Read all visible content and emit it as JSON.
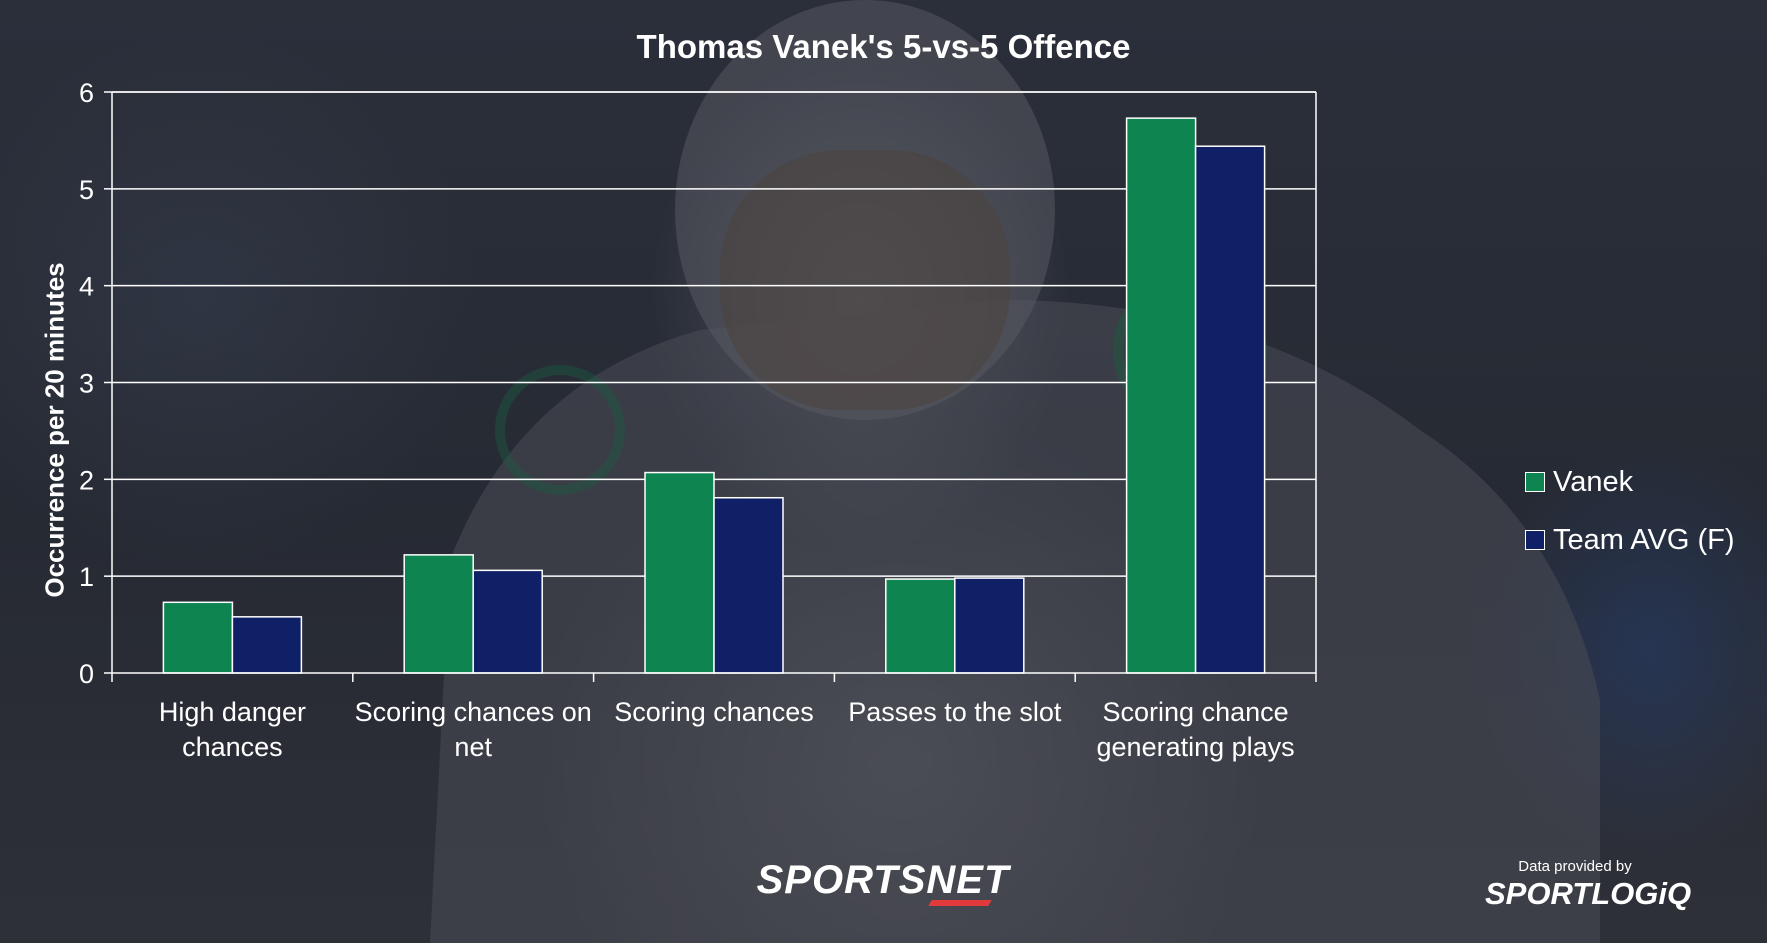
{
  "branding": {
    "broadcaster": "SPORTSNET",
    "source_caption": "Data provided by",
    "source": "SPORTLOGiQ"
  },
  "colors": {
    "vanek": "#0e8451",
    "team": "#102066",
    "grid": "#ffffff",
    "text": "#ffffff"
  },
  "chart_data": {
    "type": "bar",
    "title": "Thomas Vanek's 5-vs-5 Offence",
    "ylabel": "Occurrence per 20 minutes",
    "xlabel": "",
    "ylim": [
      0,
      6
    ],
    "yticks": [
      0,
      1,
      2,
      3,
      4,
      5,
      6
    ],
    "grid": true,
    "legend_position": "right",
    "categories": [
      [
        "High danger",
        "chances"
      ],
      [
        "Scoring chances on",
        "net"
      ],
      [
        "Scoring chances"
      ],
      [
        "Passes to the slot"
      ],
      [
        "Scoring chance",
        "generating plays"
      ]
    ],
    "series": [
      {
        "name": "Vanek",
        "color": "#0e8451",
        "values": [
          0.73,
          1.22,
          2.07,
          0.97,
          5.73
        ]
      },
      {
        "name": "Team AVG (F)",
        "color": "#102066",
        "values": [
          0.58,
          1.06,
          1.81,
          0.98,
          5.44
        ]
      }
    ]
  }
}
